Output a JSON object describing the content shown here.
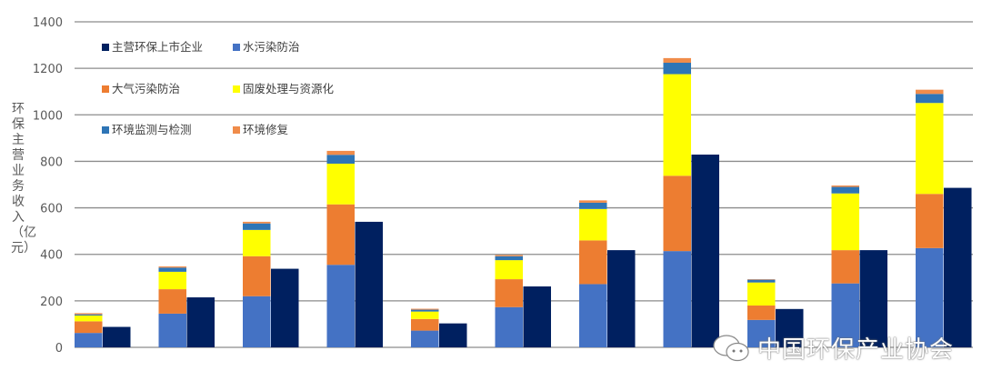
{
  "chart_data": {
    "type": "bar",
    "stacked_and_grouped": true,
    "ylabel": "环保主营业务收入（亿元）",
    "ylim": [
      0,
      1400
    ],
    "yticks": [
      0,
      200,
      400,
      600,
      800,
      1000,
      1200,
      1400
    ],
    "grid": true,
    "legend_position": "top-left",
    "categories": [
      "",
      "",
      "",
      "",
      "",
      "",
      "",
      "",
      "",
      "",
      ""
    ],
    "series": [
      {
        "name": "主营环保上市企业",
        "stack": "listed",
        "color": "#002060",
        "values": [
          88,
          215,
          338,
          540,
          103,
          262,
          418,
          829,
          165,
          418,
          686
        ]
      },
      {
        "name": "水污染防治",
        "stack": "sector",
        "color": "#4472c4",
        "values": [
          62,
          145,
          220,
          355,
          72,
          173,
          272,
          414,
          118,
          275,
          427
        ]
      },
      {
        "name": "大气污染防治",
        "stack": "sector",
        "color": "#ed7d31",
        "values": [
          50,
          105,
          172,
          260,
          50,
          120,
          188,
          324,
          62,
          143,
          233
        ]
      },
      {
        "name": "固废处理与资源化",
        "stack": "sector",
        "color": "#ffff00",
        "values": [
          25,
          75,
          113,
          175,
          32,
          82,
          135,
          437,
          99,
          244,
          391
        ]
      },
      {
        "name": "环境监测与检测",
        "stack": "sector",
        "color": "#2e75b6",
        "values": [
          5,
          18,
          28,
          38,
          8,
          17,
          27,
          49,
          12,
          28,
          39
        ]
      },
      {
        "name": "环境修复",
        "stack": "sector",
        "color": "#f08c4a",
        "values": [
          5,
          5,
          7,
          17,
          4,
          5,
          10,
          20,
          2,
          6,
          18
        ]
      }
    ]
  },
  "watermark": {
    "text": "中国环保产业协会",
    "icon": "wechat-icon"
  }
}
